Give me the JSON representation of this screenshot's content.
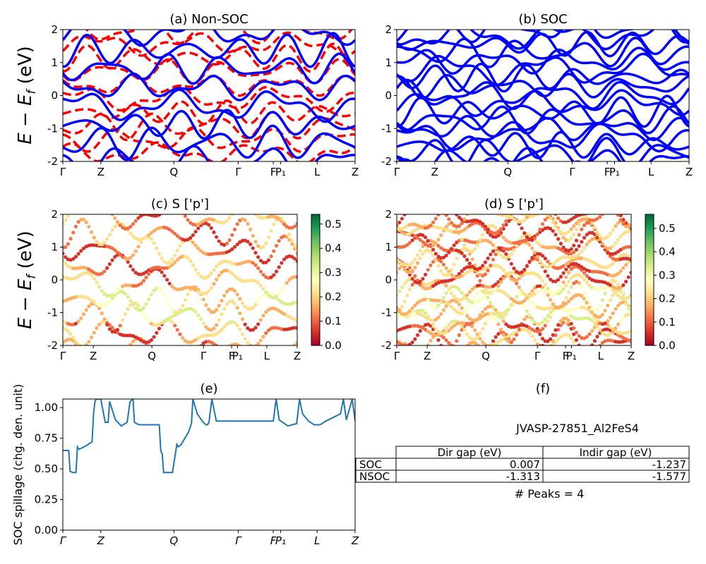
{
  "chart_data": [
    {
      "id": "a",
      "type": "line",
      "title": "(a) Non-SOC",
      "ylabel": "E − E_f (eV)",
      "ylim": [
        -2,
        2
      ],
      "yticks": [
        -2,
        -1,
        0,
        1,
        2
      ],
      "xticks": [
        "Γ",
        "Z",
        "Q",
        "Γ",
        "F",
        "P₁",
        "L",
        "Z"
      ],
      "series": [
        {
          "style": "solid",
          "color": "#0000ff",
          "count": 9
        },
        {
          "style": "dashed",
          "color": "#ff0000",
          "count": 10
        }
      ]
    },
    {
      "id": "b",
      "type": "line",
      "title": "(b) SOC",
      "ylim": [
        -2,
        2
      ],
      "yticks": [
        -2,
        -1,
        0,
        1,
        2
      ],
      "xticks": [
        "Γ",
        "Z",
        "Q",
        "Γ",
        "F",
        "P₁",
        "L",
        "Z"
      ],
      "series": [
        {
          "style": "solid",
          "color": "#0000ff",
          "count": 18
        }
      ]
    },
    {
      "id": "c",
      "type": "scatter",
      "title": "(c)  S ['p']",
      "ylabel": "E − E_f (eV)",
      "ylim": [
        -2,
        2
      ],
      "yticks": [
        -2,
        -1,
        0,
        1,
        2
      ],
      "xticks": [
        "Γ",
        "Z",
        "Q",
        "Γ",
        "F",
        "P₁",
        "L",
        "Z"
      ],
      "colorbar": {
        "min": 0.0,
        "max": 0.54,
        "ticks": [
          "0.0",
          "0.1",
          "0.2",
          "0.3",
          "0.4",
          "0.5"
        ],
        "colormap": "RdYlGn"
      }
    },
    {
      "id": "d",
      "type": "scatter",
      "title": "(d) S ['p']",
      "ylim": [
        -2,
        2
      ],
      "yticks": [
        -2,
        -1,
        0,
        1,
        2
      ],
      "xticks": [
        "Γ",
        "Z",
        "Q",
        "Γ",
        "F",
        "P₁",
        "L",
        "Z"
      ],
      "colorbar": {
        "min": 0.0,
        "max": 0.56,
        "ticks": [
          "0.0",
          "0.1",
          "0.2",
          "0.3",
          "0.4",
          "0.5"
        ],
        "colormap": "RdYlGn"
      }
    },
    {
      "id": "e",
      "type": "line",
      "title": "(e)",
      "ylabel": "SOC spillage (chg. den. unit)",
      "ylim": [
        0,
        1.07
      ],
      "yticks": [
        "0.00",
        "0.25",
        "0.50",
        "0.75",
        "1.00"
      ],
      "xticks": [
        "Γ",
        "Z",
        "Q",
        "Γ",
        "F",
        "P₁",
        "L",
        "Z"
      ],
      "color": "#1f77b4",
      "x": [
        0,
        0.02,
        0.025,
        0.035,
        0.045,
        0.05,
        0.055,
        0.065,
        0.08,
        0.1,
        0.105,
        0.11,
        0.115,
        0.13,
        0.145,
        0.15,
        0.155,
        0.16,
        0.18,
        0.2,
        0.22,
        0.23,
        0.24,
        0.245,
        0.26,
        0.275,
        0.3,
        0.32,
        0.33,
        0.335,
        0.34,
        0.345,
        0.355,
        0.375,
        0.39,
        0.395,
        0.405,
        0.43,
        0.44,
        0.445,
        0.46,
        0.48,
        0.49,
        0.495,
        0.5,
        0.51,
        0.525,
        0.545,
        0.55,
        0.565,
        0.57,
        0.58,
        0.6,
        0.62,
        0.64,
        0.66,
        0.68,
        0.7,
        0.72,
        0.73,
        0.74,
        0.77,
        0.8,
        0.81,
        0.82,
        0.84,
        0.86,
        0.88,
        0.9,
        0.95,
        0.96,
        0.97,
        0.99,
        1.0
      ],
      "y": [
        0.65,
        0.65,
        0.48,
        0.47,
        0.47,
        0.68,
        0.66,
        0.67,
        0.69,
        0.72,
        0.95,
        1.05,
        1.07,
        1.07,
        0.88,
        0.88,
        0.88,
        1.05,
        0.9,
        0.85,
        0.88,
        1.05,
        1.07,
        0.88,
        0.86,
        0.86,
        0.86,
        0.86,
        0.86,
        0.65,
        0.62,
        0.47,
        0.47,
        0.47,
        0.7,
        0.68,
        0.7,
        0.8,
        0.87,
        1.07,
        0.95,
        0.88,
        0.86,
        0.86,
        0.88,
        1.07,
        0.89,
        0.89,
        0.89,
        0.89,
        0.89,
        0.89,
        0.89,
        0.89,
        0.89,
        0.89,
        0.89,
        0.89,
        0.89,
        1.07,
        0.9,
        0.85,
        0.87,
        1.07,
        0.95,
        0.89,
        0.86,
        0.86,
        0.89,
        0.95,
        1.07,
        0.9,
        1.07,
        0.89
      ]
    }
  ],
  "info_panel": {
    "title": "(f)",
    "caption": "JVASP-27851_Al2FeS4",
    "table": {
      "headers": [
        "Dir gap (eV)",
        "Indir gap (eV)"
      ],
      "rows": [
        {
          "label": "SOC",
          "dir": "0.007",
          "indir": "-1.237"
        },
        {
          "label": "NSOC",
          "dir": "-1.313",
          "indir": "-1.577"
        }
      ]
    },
    "peaks": "# Peaks = 4"
  }
}
